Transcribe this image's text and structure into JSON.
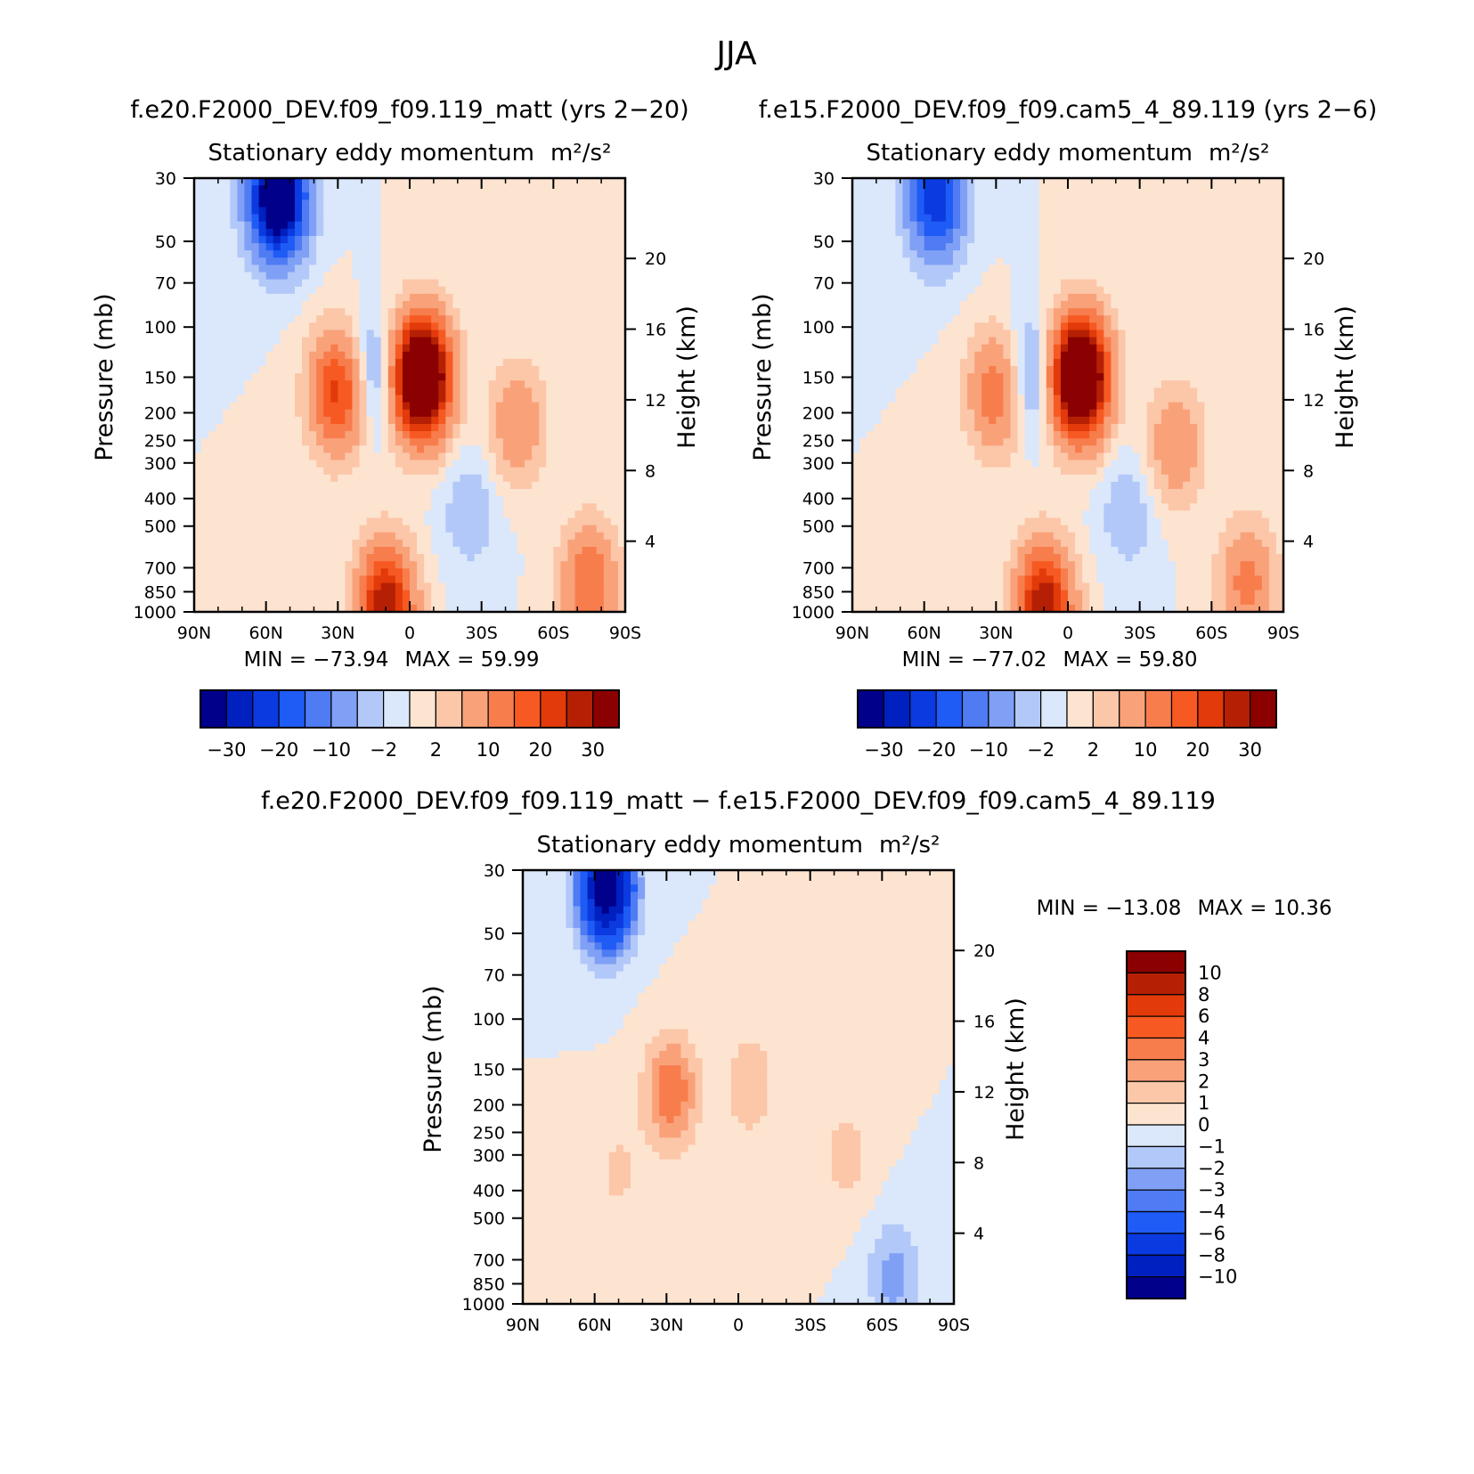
{
  "figure": {
    "title": "JJA"
  },
  "chart_data": [
    {
      "type": "contour",
      "name": "control",
      "case_title": "f.e20.F2000_DEV.f09_f09.119_matt (yrs 2−20)",
      "title": "Stationary eddy momentum",
      "units": "m²/s²",
      "xlabel": "",
      "ylabel": "Pressure (mb)",
      "ylabel_right": "Height (km)",
      "x_ticks": [
        "90N",
        "60N",
        "30N",
        "0",
        "30S",
        "60S",
        "90S"
      ],
      "y_ticks": [
        30,
        50,
        70,
        100,
        150,
        200,
        250,
        300,
        400,
        500,
        700,
        850,
        1000
      ],
      "height_ticks": [
        4,
        8,
        12,
        16,
        20
      ],
      "min_label": "MIN =  −73.94",
      "max_label": "MAX =   59.99",
      "min": -73.94,
      "max": 59.99,
      "colorbar_labels": [
        "−30",
        "−20",
        "−10",
        "−2",
        "2",
        "10",
        "20",
        "30"
      ],
      "features": [
        {
          "lat": 55,
          "p": 35,
          "value": -45
        },
        {
          "lat": 30,
          "p": 170,
          "value": 22
        },
        {
          "lat": 15,
          "p": 150,
          "value": -8
        },
        {
          "lat": -5,
          "p": 150,
          "value": 55
        },
        {
          "lat": -45,
          "p": 220,
          "value": 9
        },
        {
          "lat": -25,
          "p": 450,
          "value": -4
        },
        {
          "lat": 10,
          "p": 950,
          "value": 30
        },
        {
          "lat": -75,
          "p": 800,
          "value": 15
        }
      ]
    },
    {
      "type": "contour",
      "name": "test",
      "case_title": "f.e15.F2000_DEV.f09_f09.cam5_4_89.119 (yrs 2−6)",
      "title": "Stationary eddy momentum",
      "units": "m²/s²",
      "xlabel": "",
      "ylabel": "Pressure (mb)",
      "ylabel_right": "Height (km)",
      "x_ticks": [
        "90N",
        "60N",
        "30N",
        "0",
        "30S",
        "60S",
        "90S"
      ],
      "y_ticks": [
        30,
        50,
        70,
        100,
        150,
        200,
        250,
        300,
        400,
        500,
        700,
        850,
        1000
      ],
      "height_ticks": [
        4,
        8,
        12,
        16,
        20
      ],
      "min_label": "MIN =  −77.02",
      "max_label": "MAX =   59.80",
      "min": -77.02,
      "max": 59.8,
      "colorbar_labels": [
        "−30",
        "−20",
        "−10",
        "−2",
        "2",
        "10",
        "20",
        "30"
      ],
      "features": [
        {
          "lat": 55,
          "p": 35,
          "value": -25
        },
        {
          "lat": 30,
          "p": 170,
          "value": 14
        },
        {
          "lat": 15,
          "p": 150,
          "value": -8
        },
        {
          "lat": -5,
          "p": 150,
          "value": 55
        },
        {
          "lat": -45,
          "p": 260,
          "value": 9
        },
        {
          "lat": -25,
          "p": 450,
          "value": -4
        },
        {
          "lat": 10,
          "p": 950,
          "value": 30
        },
        {
          "lat": -75,
          "p": 800,
          "value": 12
        }
      ]
    },
    {
      "type": "contour",
      "name": "difference",
      "case_title": "f.e20.F2000_DEV.f09_f09.119_matt − f.e15.F2000_DEV.f09_f09.cam5_4_89.119",
      "title": "Stationary eddy momentum",
      "units": "m²/s²",
      "xlabel": "",
      "ylabel": "Pressure (mb)",
      "ylabel_right": "Height (km)",
      "x_ticks": [
        "90N",
        "60N",
        "30N",
        "0",
        "30S",
        "60S",
        "90S"
      ],
      "y_ticks": [
        30,
        50,
        70,
        100,
        150,
        200,
        250,
        300,
        400,
        500,
        700,
        850,
        1000
      ],
      "height_ticks": [
        4,
        8,
        12,
        16,
        20
      ],
      "min_label": "MIN =  −13.08",
      "max_label": "MAX =   10.36",
      "min": -13.08,
      "max": 10.36,
      "colorbar_labels": [
        "10",
        "8",
        "6",
        "4",
        "3",
        "2",
        "1",
        "0",
        "−1",
        "−2",
        "−3",
        "−4",
        "−6",
        "−8",
        "−10"
      ],
      "features": [
        {
          "lat": 55,
          "p": 35,
          "value": -12
        },
        {
          "lat": 28,
          "p": 180,
          "value": 4
        },
        {
          "lat": -5,
          "p": 170,
          "value": 1.8
        },
        {
          "lat": -45,
          "p": 300,
          "value": 1.5
        },
        {
          "lat": 50,
          "p": 350,
          "value": 1.2
        },
        {
          "lat": -65,
          "p": 800,
          "value": -2.5
        }
      ]
    }
  ],
  "colors": {
    "main_scale": [
      "#00008b",
      "#0020c0",
      "#0a3ae0",
      "#1f5bf5",
      "#4f7bf3",
      "#7fa0f5",
      "#b2c8f8",
      "#dbe7fb",
      "#fde4d0",
      "#fcc6a8",
      "#f9a27a",
      "#f87d4d",
      "#f65a22",
      "#e23a0a",
      "#b52005",
      "#8b0000"
    ],
    "diff_scale": [
      "#00008b",
      "#0020c0",
      "#0a3ae0",
      "#1f5bf5",
      "#4f7bf3",
      "#7fa0f5",
      "#b2c8f8",
      "#dbe7fb",
      "#fde4d0",
      "#fcc6a8",
      "#f9a27a",
      "#f87d4d",
      "#f65a22",
      "#e23a0a",
      "#b52005",
      "#8b0000"
    ]
  }
}
